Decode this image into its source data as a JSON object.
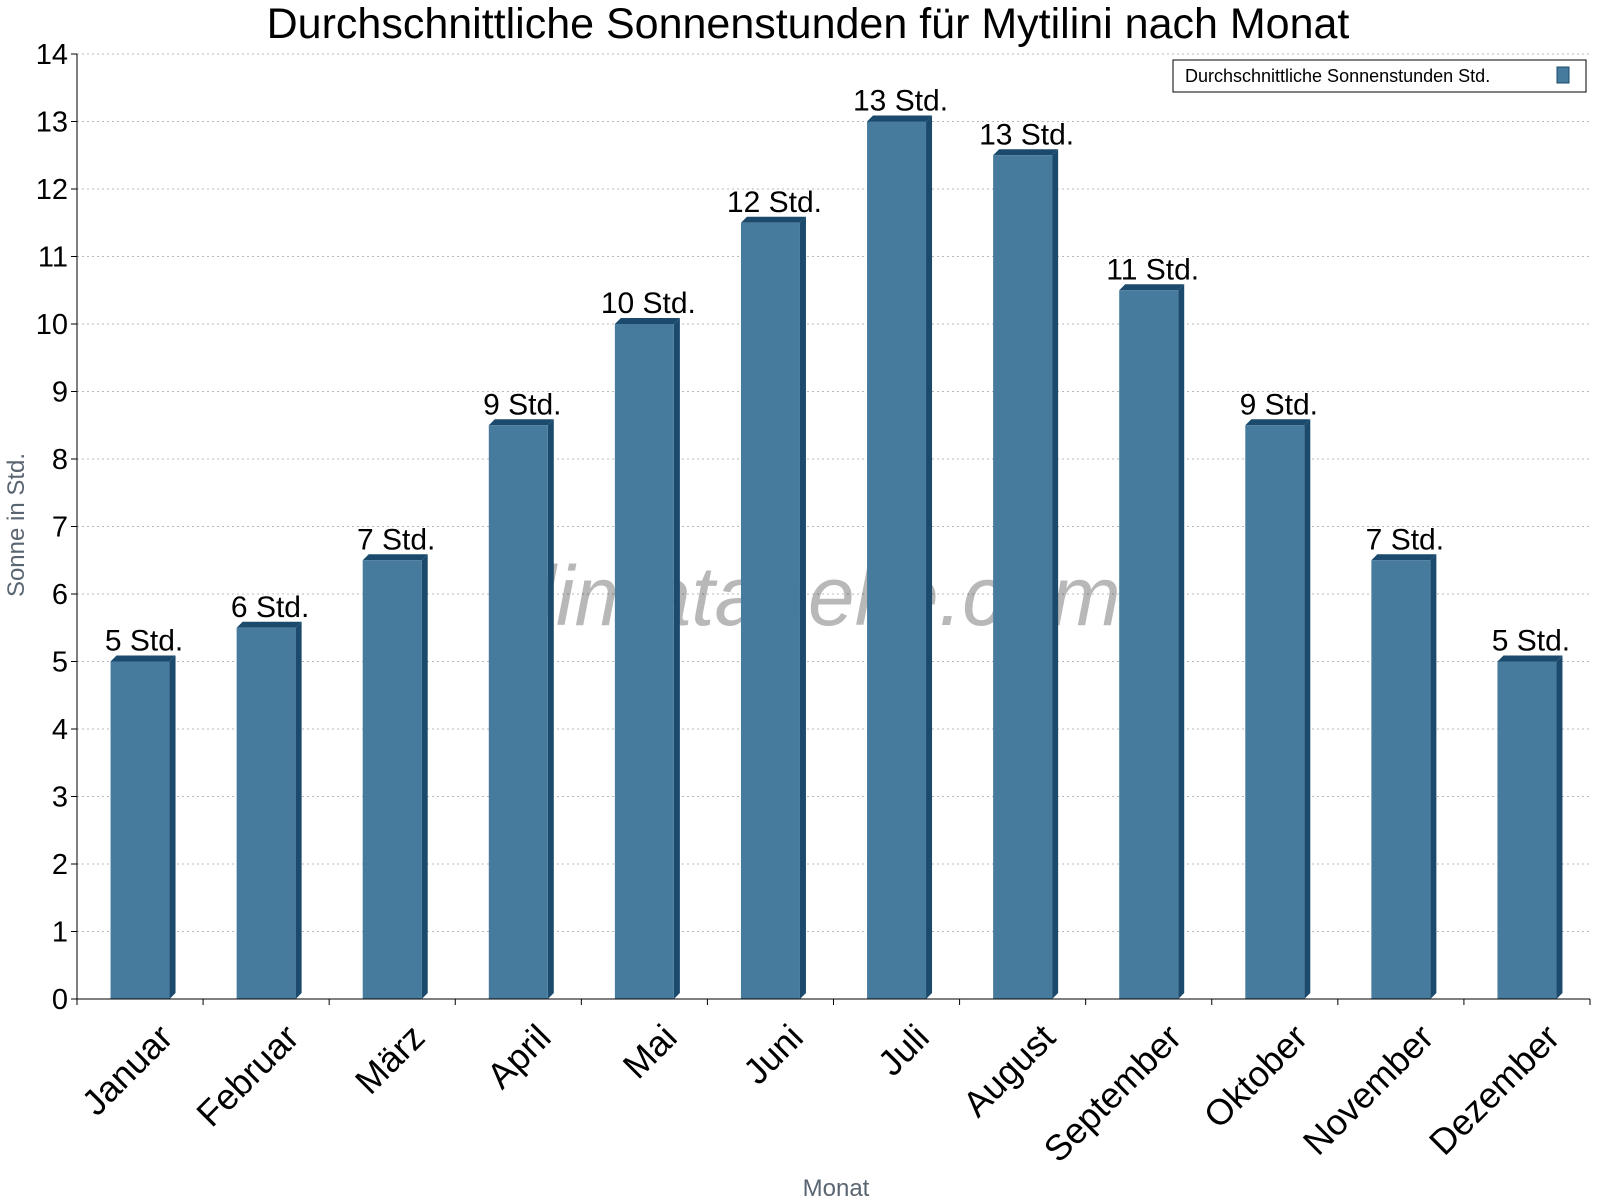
{
  "chart_data": {
    "type": "bar",
    "title": "Durchschnittliche Sonnenstunden für Mytilini nach Monat",
    "xlabel": "Monat",
    "ylabel": "Sonne in Std.",
    "ylim": [
      0,
      14
    ],
    "yticks": [
      "0",
      "1",
      "2",
      "3",
      "4",
      "5",
      "6",
      "7",
      "8",
      "9",
      "10",
      "11",
      "12",
      "13",
      "14"
    ],
    "grid": true,
    "legend_position": "top-right",
    "categories": [
      "Januar",
      "Februar",
      "März",
      "April",
      "Mai",
      "Juni",
      "Juli",
      "August",
      "September",
      "Oktober",
      "November",
      "Dezember"
    ],
    "series": [
      {
        "name": "Durchschnittliche Sonnenstunden Std.",
        "values": [
          5,
          5.5,
          6.5,
          8.5,
          10,
          11.5,
          13,
          12.5,
          10.5,
          8.5,
          6.5,
          5
        ],
        "labels": [
          "5 Std.",
          "6 Std.",
          "7 Std.",
          "9 Std.",
          "10 Std.",
          "12 Std.",
          "13 Std.",
          "13 Std.",
          "11 Std.",
          "9 Std.",
          "7 Std.",
          "5 Std."
        ],
        "color": "#467b9e",
        "side_color": "#1b4a6c"
      }
    ]
  },
  "watermark": "klimatabelle.com"
}
